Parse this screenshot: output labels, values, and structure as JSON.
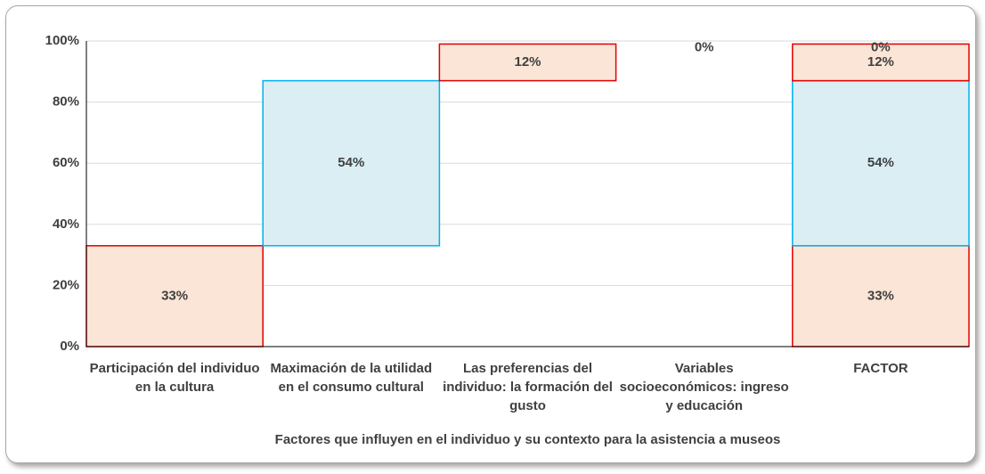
{
  "chart_data": {
    "type": "waterfall",
    "categories": [
      "Participación del individuo en la cultura",
      "Maximación de la utilidad en el consumo cultural",
      "Las preferencias del individuo: la formación del gusto",
      "Variables socioeconómicos: ingreso y educación"
    ],
    "total_category": "FACTOR",
    "values": [
      33,
      54,
      12,
      0
    ],
    "value_labels": [
      "33%",
      "54%",
      "12%",
      "0%"
    ],
    "colors": [
      "#fbe5d6",
      "#daeef3",
      "#fbe5d6",
      "#daeef3"
    ],
    "edge_colors": [
      "#e00000",
      "#00b0f0",
      "#e00000",
      "#00b0f0"
    ],
    "x_label": "Factores que influyen en el individuo y su contexto para la asistencia a museos",
    "ylim": [
      0,
      100
    ],
    "yticks": [
      {
        "value": 0,
        "label": "0%"
      },
      {
        "value": 20,
        "label": "20%"
      },
      {
        "value": 40,
        "label": "40%"
      },
      {
        "value": 60,
        "label": "60%"
      },
      {
        "value": 80,
        "label": "80%"
      },
      {
        "value": 100,
        "label": "100%"
      }
    ],
    "grid": true
  }
}
